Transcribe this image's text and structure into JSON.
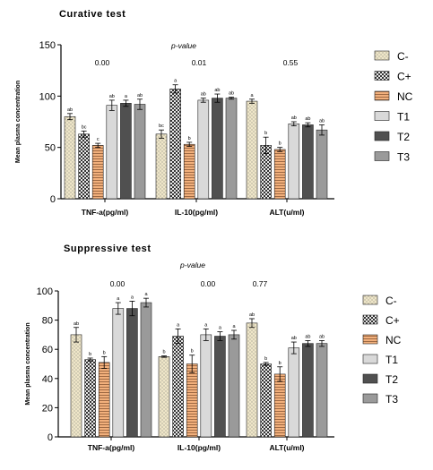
{
  "chart_data": [
    {
      "type": "bar",
      "title": "Curative test",
      "ylabel": "Mean plasma concentration",
      "xlabel": "",
      "ylim": [
        0,
        150
      ],
      "yticks": [
        0,
        50,
        100,
        150
      ],
      "p_value_label": "p-value",
      "categories": [
        "TNF-a(pg/ml)",
        "IL-10(pg/ml)",
        "ALT(u/ml)"
      ],
      "p_values": [
        "0.00",
        "0.01",
        "0.55"
      ],
      "legend_position": "right",
      "series": [
        {
          "name": "C-",
          "values": [
            80,
            63,
            95
          ],
          "errors": [
            3,
            4,
            2
          ],
          "labels": [
            "ab",
            "bc",
            "a"
          ],
          "color": "#efe6c8",
          "pattern": "dots"
        },
        {
          "name": "C+",
          "values": [
            63,
            107,
            52
          ],
          "errors": [
            3,
            4,
            8
          ],
          "labels": [
            "bc",
            "a",
            "b"
          ],
          "color": "#3a3a3a",
          "pattern": "check"
        },
        {
          "name": "NC",
          "values": [
            52,
            53,
            48
          ],
          "errors": [
            2,
            2,
            2
          ],
          "labels": [
            "c",
            "b",
            "b"
          ],
          "color": "#f2b07c",
          "pattern": "hlines"
        },
        {
          "name": "T1",
          "values": [
            91,
            96,
            73
          ],
          "errors": [
            5,
            2,
            2
          ],
          "labels": [
            "ab",
            "ab",
            "ab"
          ],
          "color": "#d9d9d9",
          "pattern": "none"
        },
        {
          "name": "T2",
          "values": [
            93,
            98,
            72
          ],
          "errors": [
            3,
            4,
            2
          ],
          "labels": [
            "a",
            "ab",
            "ab"
          ],
          "color": "#505050",
          "pattern": "none"
        },
        {
          "name": "T3",
          "values": [
            92,
            98,
            67
          ],
          "errors": [
            5,
            1,
            5
          ],
          "labels": [
            "ab",
            "ab",
            "ab"
          ],
          "color": "#9a9a9a",
          "pattern": "none"
        }
      ]
    },
    {
      "type": "bar",
      "title": "Suppressive test",
      "ylabel": "Mean plasma concentration",
      "xlabel": "",
      "ylim": [
        0,
        100
      ],
      "yticks": [
        0,
        20,
        40,
        60,
        80,
        100
      ],
      "p_value_label": "p-value",
      "categories": [
        "TNF-a(pg/ml)",
        "IL-10(pg/ml)",
        "ALT(u/ml)"
      ],
      "p_values": [
        "0.00",
        "0.00",
        "0.77"
      ],
      "legend_position": "right",
      "series": [
        {
          "name": "C-",
          "values": [
            70,
            55,
            78
          ],
          "errors": [
            5,
            0.5,
            3
          ],
          "labels": [
            "ab",
            "b",
            "ab"
          ],
          "color": "#efe6c8",
          "pattern": "dots"
        },
        {
          "name": "C+",
          "values": [
            53,
            69,
            50
          ],
          "errors": [
            1,
            5,
            1
          ],
          "labels": [
            "b",
            "a",
            "b"
          ],
          "color": "#3a3a3a",
          "pattern": "check"
        },
        {
          "name": "NC",
          "values": [
            51,
            50,
            43
          ],
          "errors": [
            4,
            6,
            5
          ],
          "labels": [
            "b",
            "b",
            "b"
          ],
          "color": "#f2b07c",
          "pattern": "hlines"
        },
        {
          "name": "T1",
          "values": [
            88,
            70,
            61
          ],
          "errors": [
            4,
            4,
            4
          ],
          "labels": [
            "a",
            "a",
            "ab"
          ],
          "color": "#d9d9d9",
          "pattern": "none"
        },
        {
          "name": "T2",
          "values": [
            88,
            69,
            64
          ],
          "errors": [
            5,
            3,
            2
          ],
          "labels": [
            "a",
            "a",
            "ab"
          ],
          "color": "#505050",
          "pattern": "none"
        },
        {
          "name": "T3",
          "values": [
            92,
            70,
            64
          ],
          "errors": [
            3,
            3,
            2
          ],
          "labels": [
            "a",
            "a",
            "ab"
          ],
          "color": "#9a9a9a",
          "pattern": "none"
        }
      ]
    }
  ]
}
